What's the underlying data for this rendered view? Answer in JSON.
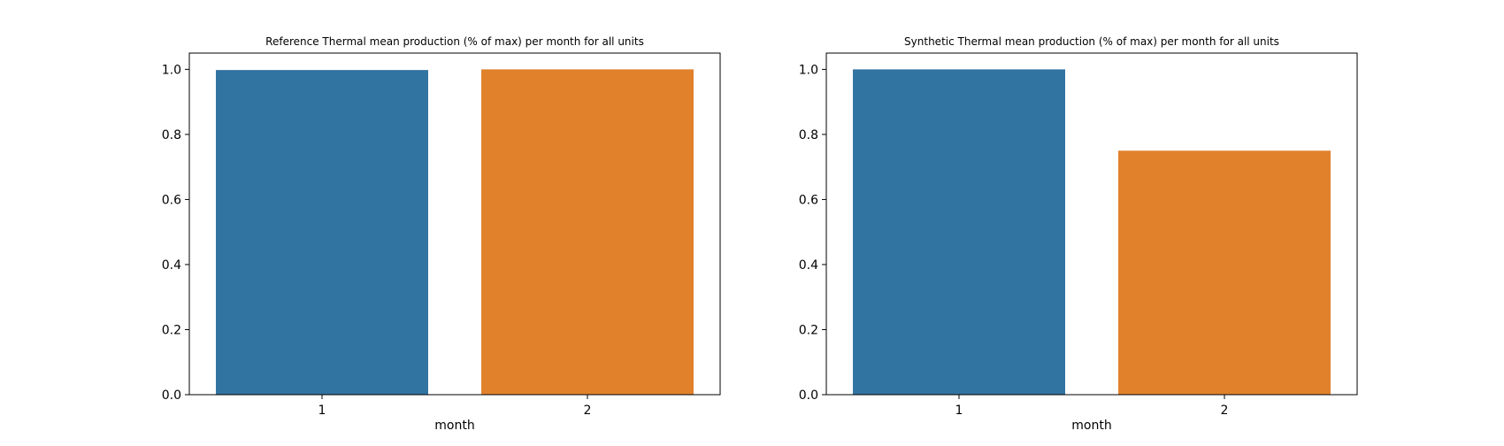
{
  "chart_data": [
    {
      "type": "bar",
      "title": "Reference Thermal mean production (% of max) per month for all units",
      "xlabel": "month",
      "ylabel": "",
      "categories": [
        "1",
        "2"
      ],
      "values": [
        0.998,
        1.0
      ],
      "colors": [
        "#3274a1",
        "#e1812c"
      ],
      "ylim": [
        0,
        1.05
      ],
      "yticks": [
        "0.0",
        "0.2",
        "0.4",
        "0.6",
        "0.8",
        "1.0"
      ],
      "grid": false
    },
    {
      "type": "bar",
      "title": "Synthetic Thermal mean production (% of max) per month for all units",
      "xlabel": "month",
      "ylabel": "",
      "categories": [
        "1",
        "2"
      ],
      "values": [
        1.0,
        0.75
      ],
      "colors": [
        "#3274a1",
        "#e1812c"
      ],
      "ylim": [
        0,
        1.05
      ],
      "yticks": [
        "0.0",
        "0.2",
        "0.4",
        "0.6",
        "0.8",
        "1.0"
      ],
      "grid": false
    }
  ]
}
